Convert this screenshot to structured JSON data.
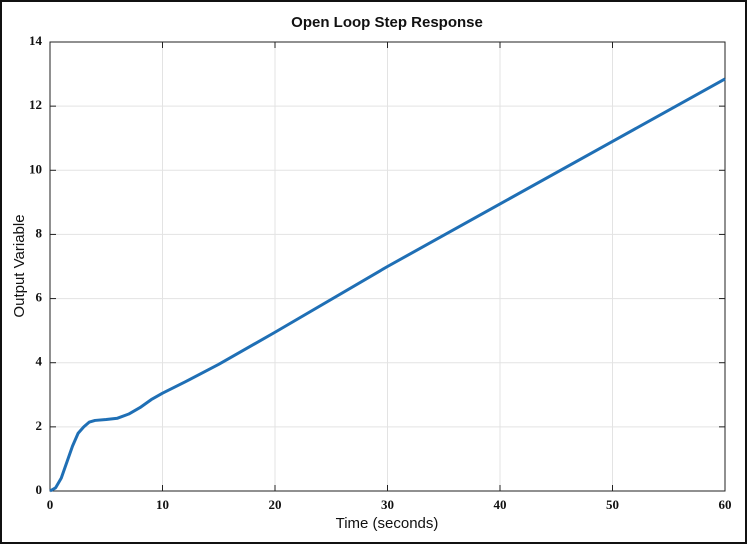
{
  "chart_data": {
    "type": "line",
    "title": "Open Loop Step Response",
    "x_label": "Time (seconds)",
    "y_label": "Output Variable",
    "x": [
      0,
      0.5,
      1,
      1.5,
      2,
      2.5,
      3,
      3.5,
      4,
      5,
      6,
      7,
      8,
      9,
      10,
      12,
      15,
      20,
      30,
      40,
      50,
      60
    ],
    "series": [
      {
        "color": "#1f6fb5",
        "values": [
          0,
          0.1,
          0.4,
          0.9,
          1.4,
          1.8,
          2.0,
          2.15,
          2.2,
          2.23,
          2.27,
          2.4,
          2.6,
          2.85,
          3.05,
          3.4,
          3.95,
          4.95,
          7.0,
          8.95,
          10.9,
          12.85
        ]
      }
    ],
    "xlim": [
      0,
      60
    ],
    "ylim": [
      0,
      14
    ],
    "xticks": [
      0,
      10,
      20,
      30,
      40,
      50,
      60
    ],
    "yticks": [
      0,
      2,
      4,
      6,
      8,
      10,
      12,
      14
    ],
    "grid": true
  }
}
